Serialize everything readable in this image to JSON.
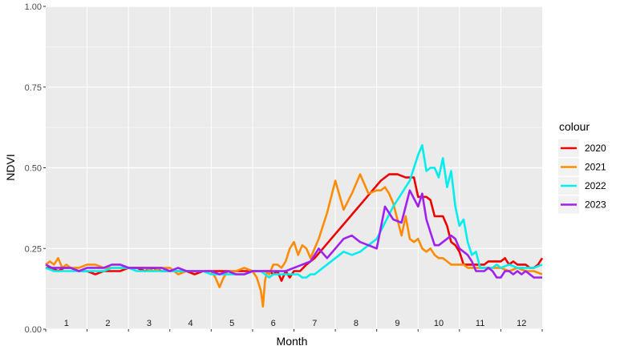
{
  "chart_data": {
    "type": "line",
    "xlabel": "Month",
    "ylabel": "NDVI",
    "ylim": [
      0,
      1
    ],
    "yticks": [
      0,
      0.25,
      0.5,
      0.75,
      1
    ],
    "ytick_labels": [
      "0.00",
      "0.25",
      "0.50",
      "0.75",
      "1.00"
    ],
    "xlim": [
      0,
      12
    ],
    "month_labels": [
      "1",
      "2",
      "3",
      "4",
      "5",
      "6",
      "7",
      "8",
      "9",
      "10",
      "11",
      "12"
    ],
    "grid": true,
    "legend_title": "colour",
    "legend_position": "right",
    "colors": {
      "panel_bg": "#EBEBEB",
      "grid": "#FFFFFF"
    },
    "series": [
      {
        "name": "2020",
        "color": "#EE0000",
        "x": [
          0.0,
          0.15,
          0.3,
          0.45,
          0.6,
          0.8,
          1.0,
          1.2,
          1.4,
          1.6,
          1.8,
          2.0,
          2.2,
          2.4,
          2.6,
          2.8,
          3.0,
          3.2,
          3.4,
          3.6,
          3.8,
          4.0,
          4.2,
          4.4,
          4.6,
          4.8,
          5.0,
          5.2,
          5.4,
          5.5,
          5.6,
          5.7,
          5.8,
          5.9,
          6.0,
          6.15,
          6.3,
          6.5,
          6.7,
          6.9,
          7.1,
          7.3,
          7.5,
          7.7,
          7.9,
          8.1,
          8.3,
          8.5,
          8.7,
          8.9,
          9.0,
          9.1,
          9.2,
          9.3,
          9.4,
          9.5,
          9.6,
          9.7,
          9.8,
          9.9,
          10.0,
          10.1,
          10.2,
          10.3,
          10.4,
          10.5,
          10.6,
          10.7,
          10.8,
          10.9,
          11.0,
          11.1,
          11.2,
          11.3,
          11.4,
          11.5,
          11.6,
          11.7,
          11.8,
          11.9,
          12.0
        ],
        "values": [
          0.19,
          0.19,
          0.18,
          0.19,
          0.19,
          0.18,
          0.18,
          0.17,
          0.18,
          0.18,
          0.18,
          0.19,
          0.19,
          0.18,
          0.19,
          0.18,
          0.18,
          0.18,
          0.18,
          0.17,
          0.18,
          0.18,
          0.18,
          0.18,
          0.18,
          0.18,
          0.18,
          0.18,
          0.18,
          0.17,
          0.18,
          0.15,
          0.18,
          0.16,
          0.18,
          0.18,
          0.2,
          0.22,
          0.25,
          0.28,
          0.31,
          0.34,
          0.37,
          0.4,
          0.43,
          0.46,
          0.48,
          0.48,
          0.47,
          0.47,
          0.41,
          0.41,
          0.41,
          0.4,
          0.35,
          0.35,
          0.35,
          0.32,
          0.27,
          0.26,
          0.24,
          0.2,
          0.2,
          0.2,
          0.2,
          0.2,
          0.2,
          0.21,
          0.21,
          0.21,
          0.21,
          0.22,
          0.2,
          0.21,
          0.2,
          0.2,
          0.2,
          0.19,
          0.19,
          0.2,
          0.22
        ]
      },
      {
        "name": "2021",
        "color": "#FF8C00",
        "x": [
          0.0,
          0.1,
          0.2,
          0.3,
          0.4,
          0.5,
          0.6,
          0.8,
          1.0,
          1.2,
          1.4,
          1.6,
          1.8,
          2.0,
          2.2,
          2.4,
          2.6,
          2.8,
          3.0,
          3.2,
          3.4,
          3.6,
          3.8,
          4.0,
          4.1,
          4.2,
          4.3,
          4.4,
          4.6,
          4.8,
          5.0,
          5.1,
          5.2,
          5.25,
          5.3,
          5.35,
          5.4,
          5.5,
          5.6,
          5.7,
          5.8,
          5.9,
          6.0,
          6.1,
          6.2,
          6.3,
          6.4,
          6.6,
          6.8,
          7.0,
          7.2,
          7.4,
          7.6,
          7.8,
          8.0,
          8.1,
          8.2,
          8.3,
          8.4,
          8.5,
          8.6,
          8.7,
          8.8,
          8.9,
          9.0,
          9.1,
          9.2,
          9.3,
          9.4,
          9.5,
          9.6,
          9.7,
          9.8,
          9.9,
          10.0,
          10.1,
          10.2,
          10.4,
          10.6,
          10.8,
          11.0,
          11.2,
          11.4,
          11.6,
          11.8,
          12.0
        ],
        "values": [
          0.2,
          0.21,
          0.2,
          0.22,
          0.19,
          0.2,
          0.19,
          0.19,
          0.2,
          0.2,
          0.19,
          0.19,
          0.19,
          0.19,
          0.19,
          0.19,
          0.18,
          0.19,
          0.19,
          0.17,
          0.18,
          0.18,
          0.18,
          0.18,
          0.16,
          0.13,
          0.16,
          0.18,
          0.18,
          0.19,
          0.18,
          0.16,
          0.12,
          0.07,
          0.15,
          0.18,
          0.17,
          0.2,
          0.2,
          0.19,
          0.21,
          0.25,
          0.27,
          0.23,
          0.26,
          0.25,
          0.22,
          0.28,
          0.36,
          0.46,
          0.37,
          0.42,
          0.48,
          0.42,
          0.43,
          0.43,
          0.44,
          0.42,
          0.39,
          0.34,
          0.29,
          0.35,
          0.28,
          0.27,
          0.28,
          0.25,
          0.24,
          0.25,
          0.23,
          0.22,
          0.22,
          0.21,
          0.2,
          0.2,
          0.2,
          0.2,
          0.19,
          0.19,
          0.19,
          0.19,
          0.19,
          0.18,
          0.19,
          0.18,
          0.18,
          0.17
        ]
      },
      {
        "name": "2022",
        "color": "#00EEEE",
        "x": [
          0.0,
          0.2,
          0.4,
          0.6,
          0.8,
          1.0,
          1.2,
          1.4,
          1.6,
          1.8,
          2.0,
          2.2,
          2.4,
          2.6,
          2.8,
          3.0,
          3.2,
          3.4,
          3.6,
          3.8,
          4.0,
          4.2,
          4.4,
          4.6,
          4.8,
          5.0,
          5.2,
          5.4,
          5.5,
          5.6,
          5.7,
          5.8,
          5.9,
          6.0,
          6.1,
          6.2,
          6.3,
          6.4,
          6.5,
          6.6,
          6.8,
          7.0,
          7.2,
          7.4,
          7.6,
          7.8,
          8.0,
          8.2,
          8.4,
          8.6,
          8.8,
          8.9,
          9.0,
          9.1,
          9.2,
          9.3,
          9.4,
          9.5,
          9.6,
          9.7,
          9.8,
          9.9,
          10.0,
          10.1,
          10.2,
          10.3,
          10.4,
          10.5,
          10.6,
          10.7,
          10.8,
          10.9,
          11.0,
          11.2,
          11.4,
          11.6,
          11.8,
          12.0
        ],
        "values": [
          0.19,
          0.18,
          0.18,
          0.18,
          0.18,
          0.18,
          0.18,
          0.18,
          0.19,
          0.19,
          0.19,
          0.18,
          0.18,
          0.18,
          0.18,
          0.18,
          0.18,
          0.18,
          0.18,
          0.18,
          0.17,
          0.17,
          0.17,
          0.17,
          0.17,
          0.18,
          0.18,
          0.16,
          0.17,
          0.17,
          0.17,
          0.17,
          0.17,
          0.17,
          0.17,
          0.16,
          0.16,
          0.17,
          0.17,
          0.18,
          0.2,
          0.22,
          0.24,
          0.23,
          0.24,
          0.26,
          0.28,
          0.33,
          0.38,
          0.42,
          0.46,
          0.5,
          0.54,
          0.57,
          0.49,
          0.5,
          0.5,
          0.47,
          0.53,
          0.44,
          0.49,
          0.38,
          0.32,
          0.34,
          0.27,
          0.23,
          0.24,
          0.19,
          0.19,
          0.19,
          0.19,
          0.2,
          0.19,
          0.2,
          0.19,
          0.19,
          0.19,
          0.2
        ]
      },
      {
        "name": "2023",
        "color": "#A020F0",
        "x": [
          0.0,
          0.15,
          0.3,
          0.45,
          0.6,
          0.8,
          1.0,
          1.2,
          1.4,
          1.6,
          1.8,
          2.0,
          2.2,
          2.4,
          2.6,
          2.8,
          3.0,
          3.2,
          3.4,
          3.6,
          3.8,
          4.0,
          4.2,
          4.4,
          4.6,
          4.8,
          5.0,
          5.2,
          5.4,
          5.6,
          5.8,
          6.0,
          6.2,
          6.4,
          6.6,
          6.8,
          7.0,
          7.2,
          7.4,
          7.6,
          7.8,
          8.0,
          8.2,
          8.4,
          8.6,
          8.8,
          9.0,
          9.1,
          9.2,
          9.3,
          9.4,
          9.5,
          9.6,
          9.7,
          9.8,
          9.9,
          10.0,
          10.1,
          10.2,
          10.3,
          10.4,
          10.5,
          10.6,
          10.7,
          10.8,
          10.9,
          11.0,
          11.1,
          11.2,
          11.3,
          11.4,
          11.5,
          11.6,
          11.7,
          11.8,
          11.9,
          12.0
        ],
        "values": [
          0.2,
          0.19,
          0.19,
          0.19,
          0.19,
          0.18,
          0.19,
          0.19,
          0.19,
          0.2,
          0.2,
          0.19,
          0.19,
          0.19,
          0.19,
          0.19,
          0.18,
          0.19,
          0.18,
          0.18,
          0.18,
          0.18,
          0.17,
          0.18,
          0.17,
          0.17,
          0.18,
          0.18,
          0.18,
          0.18,
          0.18,
          0.19,
          0.2,
          0.21,
          0.25,
          0.22,
          0.25,
          0.28,
          0.29,
          0.27,
          0.26,
          0.25,
          0.38,
          0.34,
          0.33,
          0.43,
          0.38,
          0.42,
          0.34,
          0.3,
          0.26,
          0.26,
          0.27,
          0.28,
          0.29,
          0.28,
          0.25,
          0.24,
          0.23,
          0.21,
          0.18,
          0.18,
          0.18,
          0.19,
          0.18,
          0.16,
          0.16,
          0.18,
          0.18,
          0.17,
          0.18,
          0.17,
          0.18,
          0.17,
          0.16,
          0.16,
          0.16
        ]
      }
    ]
  }
}
